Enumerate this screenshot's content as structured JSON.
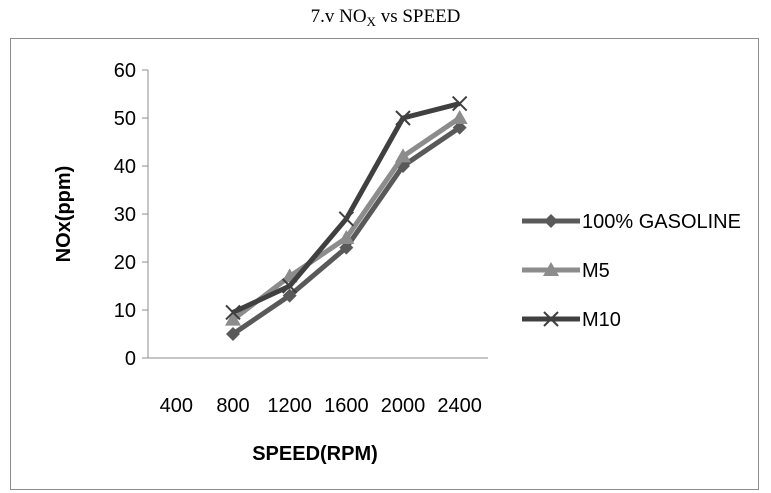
{
  "caption": {
    "prefix": "7.v NO",
    "sub": "X",
    "suffix": " vs SPEED"
  },
  "chart_data": {
    "type": "line",
    "categories": [
      "400",
      "800",
      "1200",
      "1600",
      "2000",
      "2400"
    ],
    "xlabel": "SPEED(RPM)",
    "ylabel": "NOx(ppm)",
    "ylim": [
      0,
      60
    ],
    "yticks": [
      "0",
      "10",
      "20",
      "30",
      "40",
      "50",
      "60"
    ],
    "grid": false,
    "legend": "right",
    "series": [
      {
        "name": "100% GASOLINE",
        "values": [
          null,
          5,
          13,
          23,
          40,
          48
        ],
        "color": "#595959",
        "marker": "diamond"
      },
      {
        "name": "M5",
        "values": [
          null,
          8,
          17,
          25,
          42,
          50
        ],
        "color": "#8c8c8c",
        "marker": "triangle"
      },
      {
        "name": "M10",
        "values": [
          null,
          9.5,
          15,
          29,
          50,
          53
        ],
        "color": "#404040",
        "marker": "x"
      }
    ]
  }
}
